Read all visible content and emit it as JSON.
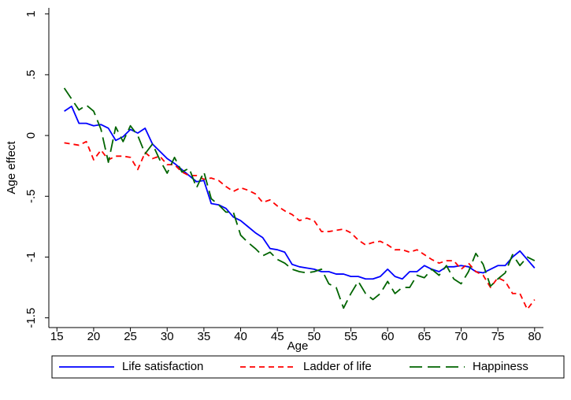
{
  "chart_data": {
    "type": "line",
    "x_label": "Age",
    "y_label": "Age effect",
    "x": [
      16,
      17,
      18,
      19,
      20,
      21,
      22,
      23,
      24,
      25,
      26,
      27,
      28,
      29,
      30,
      31,
      32,
      33,
      34,
      35,
      36,
      37,
      38,
      39,
      40,
      41,
      42,
      43,
      44,
      45,
      46,
      47,
      48,
      49,
      50,
      51,
      52,
      53,
      54,
      55,
      56,
      57,
      58,
      59,
      60,
      61,
      62,
      63,
      64,
      65,
      66,
      67,
      68,
      69,
      70,
      71,
      72,
      73,
      74,
      75,
      76,
      77,
      78,
      79,
      80
    ],
    "xlim": [
      13.9,
      81.2
    ],
    "xticks": [
      15,
      20,
      25,
      30,
      35,
      40,
      45,
      50,
      55,
      60,
      65,
      70,
      75,
      80
    ],
    "ylim": [
      -1.58,
      1.05
    ],
    "yticks": [
      -1.5,
      -1,
      {
        "value": -0.5,
        "label": "-.5"
      },
      0,
      {
        "value": 0.5,
        "label": ".5"
      },
      1
    ],
    "grid": false,
    "legend": "bottom",
    "series": [
      {
        "name": "Life satisfaction",
        "color": "#0000ff",
        "style": "solid",
        "values": [
          0.2,
          0.24,
          0.1,
          0.1,
          0.08,
          0.09,
          0.06,
          -0.04,
          -0.01,
          0.05,
          0.02,
          0.06,
          -0.07,
          -0.13,
          -0.19,
          -0.23,
          -0.28,
          -0.33,
          -0.38,
          -0.37,
          -0.56,
          -0.57,
          -0.6,
          -0.67,
          -0.7,
          -0.75,
          -0.8,
          -0.84,
          -0.93,
          -0.94,
          -0.96,
          -1.06,
          -1.08,
          -1.09,
          -1.1,
          -1.12,
          -1.12,
          -1.14,
          -1.14,
          -1.16,
          -1.16,
          -1.18,
          -1.18,
          -1.16,
          -1.1,
          -1.16,
          -1.18,
          -1.12,
          -1.12,
          -1.07,
          -1.1,
          -1.12,
          -1.08,
          -1.08,
          -1.07,
          -1.08,
          -1.12,
          -1.13,
          -1.1,
          -1.07,
          -1.07,
          -1.0,
          -0.95,
          -1.02,
          -1.09
        ]
      },
      {
        "name": "Ladder of life",
        "color": "#ff0000",
        "style": "dash",
        "values": [
          -0.06,
          -0.07,
          -0.08,
          -0.05,
          -0.2,
          -0.12,
          -0.2,
          -0.17,
          -0.17,
          -0.18,
          -0.28,
          -0.14,
          -0.19,
          -0.17,
          -0.24,
          -0.24,
          -0.3,
          -0.33,
          -0.33,
          -0.36,
          -0.35,
          -0.37,
          -0.42,
          -0.46,
          -0.43,
          -0.45,
          -0.48,
          -0.55,
          -0.53,
          -0.58,
          -0.62,
          -0.65,
          -0.7,
          -0.68,
          -0.7,
          -0.79,
          -0.79,
          -0.78,
          -0.77,
          -0.8,
          -0.86,
          -0.9,
          -0.88,
          -0.87,
          -0.9,
          -0.94,
          -0.94,
          -0.96,
          -0.94,
          -0.98,
          -1.02,
          -1.05,
          -1.03,
          -1.03,
          -1.1,
          -1.05,
          -1.12,
          -1.15,
          -1.25,
          -1.17,
          -1.2,
          -1.3,
          -1.3,
          -1.43,
          -1.35
        ]
      },
      {
        "name": "Happiness",
        "color": "#006400",
        "style": "longdash",
        "values": [
          0.39,
          0.3,
          0.21,
          0.25,
          0.2,
          0.05,
          -0.22,
          0.07,
          -0.05,
          0.08,
          0.0,
          -0.15,
          -0.07,
          -0.2,
          -0.31,
          -0.18,
          -0.3,
          -0.27,
          -0.43,
          -0.3,
          -0.52,
          -0.57,
          -0.63,
          -0.63,
          -0.82,
          -0.88,
          -0.93,
          -0.99,
          -0.96,
          -1.02,
          -1.05,
          -1.1,
          -1.12,
          -1.13,
          -1.12,
          -1.1,
          -1.22,
          -1.25,
          -1.42,
          -1.3,
          -1.2,
          -1.3,
          -1.35,
          -1.3,
          -1.2,
          -1.3,
          -1.25,
          -1.25,
          -1.15,
          -1.17,
          -1.1,
          -1.15,
          -1.07,
          -1.18,
          -1.22,
          -1.12,
          -0.97,
          -1.06,
          -1.24,
          -1.18,
          -1.13,
          -0.98,
          -1.07,
          -1.0,
          -1.03
        ]
      }
    ]
  }
}
